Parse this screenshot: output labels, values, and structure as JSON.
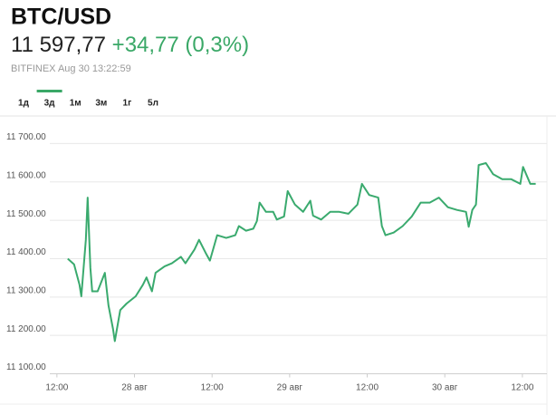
{
  "header": {
    "title": "BTC/USD",
    "price": "11 597,77",
    "change": "+34,77 (0,3%)",
    "source": "BITFINEX Aug 30 13:22:59",
    "change_color": "#3aa867"
  },
  "tabs": {
    "items": [
      "1д",
      "3д",
      "1м",
      "3м",
      "1г",
      "5л"
    ],
    "selected": 1,
    "selected_color": "#3aa867"
  },
  "chart_data": {
    "type": "line",
    "color": "#3aaa6e",
    "grid": true,
    "x": [
      13.68,
      14.66,
      15.5,
      15.78,
      16.48,
      16.76,
      17.18,
      17.46,
      18.3,
      19.42,
      19.98,
      20.68,
      20.96,
      21.8,
      22.78,
      24.18,
      25.3,
      25.86,
      26.7,
      27.26,
      28.66,
      29.78,
      31.18,
      31.88,
      33.28,
      33.98,
      35.1,
      35.66,
      36.78,
      38.18,
      39.58,
      40.14,
      41.26,
      42.38,
      42.94,
      43.36,
      44.34,
      45.46,
      46.02,
      47.14,
      47.7,
      48.82,
      50.08,
      51.2,
      51.62,
      52.88,
      54.28,
      55.68,
      57.08,
      58.48,
      59.18,
      60.3,
      61.7,
      62.26,
      62.82,
      64.08,
      65.48,
      66.88,
      68.28,
      69.68,
      71.08,
      72.48,
      73.88,
      75.28,
      75.7,
      76.26,
      76.82,
      77.24,
      78.36,
      79.48,
      80.88,
      82.28,
      83.68,
      84.1,
      85.22,
      86.06
    ],
    "values": [
      11400,
      11385,
      11332,
      11302,
      11449,
      11559,
      11376,
      11315,
      11315,
      11363,
      11278,
      11217,
      11185,
      11266,
      11283,
      11302,
      11332,
      11351,
      11315,
      11363,
      11380,
      11388,
      11405,
      11388,
      11424,
      11449,
      11412,
      11395,
      11461,
      11454,
      11461,
      11485,
      11473,
      11478,
      11498,
      11546,
      11522,
      11522,
      11502,
      11510,
      11576,
      11541,
      11522,
      11551,
      11512,
      11502,
      11522,
      11522,
      11517,
      11541,
      11595,
      11566,
      11559,
      11485,
      11461,
      11468,
      11485,
      11510,
      11546,
      11546,
      11559,
      11534,
      11527,
      11522,
      11483,
      11527,
      11541,
      11644,
      11649,
      11620,
      11607,
      11607,
      11595,
      11639,
      11595,
      11595
    ],
    "xlim": [
      10.9,
      89.2
    ],
    "ylim": [
      11080,
      11760
    ],
    "xticks": [
      {
        "value": 12,
        "label": "12:00"
      },
      {
        "value": 24,
        "label": "28 авг"
      },
      {
        "value": 36,
        "label": "12:00"
      },
      {
        "value": 48,
        "label": "29 авг"
      },
      {
        "value": 60,
        "label": "12:00"
      },
      {
        "value": 72,
        "label": "30 авг"
      },
      {
        "value": 84,
        "label": "12:00"
      }
    ],
    "yticks": [
      {
        "value": 11100,
        "label": "11 100.00"
      },
      {
        "value": 11200,
        "label": "11 200.00"
      },
      {
        "value": 11300,
        "label": "11 300.00"
      },
      {
        "value": 11400,
        "label": "11 400.00"
      },
      {
        "value": 11500,
        "label": "11 500.00"
      },
      {
        "value": 11600,
        "label": "11 600.00"
      },
      {
        "value": 11700,
        "label": "11 700.00"
      }
    ]
  }
}
